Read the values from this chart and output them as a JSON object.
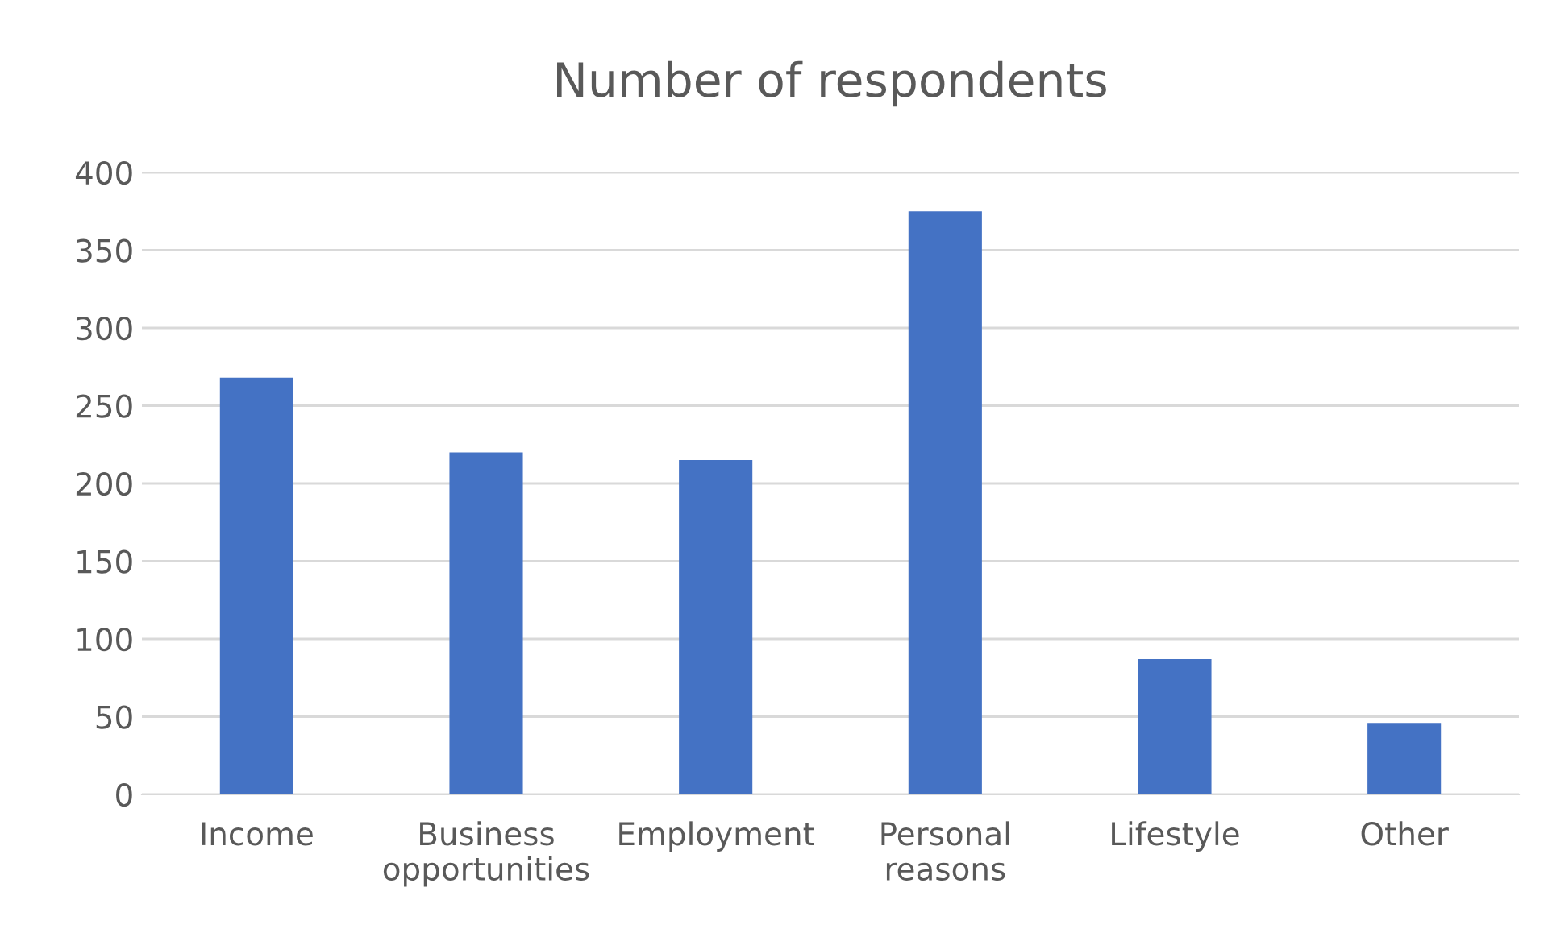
{
  "chart_data": {
    "type": "bar",
    "title": "Number of respondents",
    "categories": [
      "Income",
      "Business\nopportunities",
      "Employment",
      "Personal\nreasons",
      "Lifestyle",
      "Other"
    ],
    "values": [
      268,
      220,
      215,
      375,
      87,
      46
    ],
    "color": "#4472c4",
    "ylim": [
      0,
      400
    ],
    "yticks": [
      0,
      50,
      100,
      150,
      200,
      250,
      300,
      350,
      400
    ],
    "grid": "y",
    "legend": false
  }
}
